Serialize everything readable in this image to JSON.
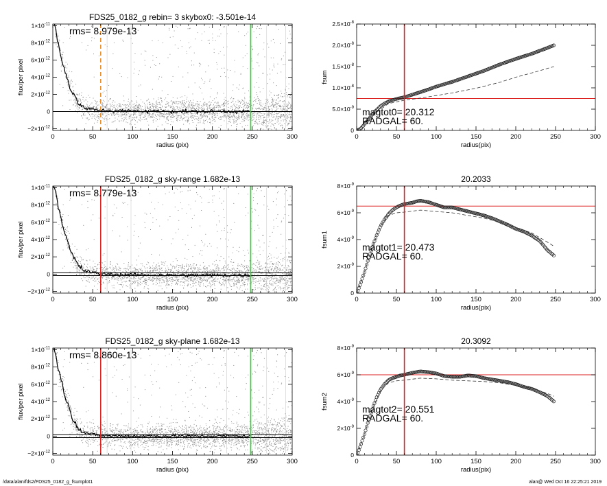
{
  "footer": {
    "path": "/data/alan/fds2/FDS25_0182_g_fsumplot1",
    "stamp": "alan@  Wed Oct 16 22:25:21 2019"
  },
  "chart_data": [
    {
      "id": "p1",
      "type": "scatter",
      "title": "FDS25_0182_g rebin= 3    skybox0: -3.501e-14",
      "xlabel": "radius (pix)",
      "ylabel": "flux/per pixel",
      "xlim": [
        0,
        300
      ],
      "ylim": [
        -2.2e-12,
        1.02e-11
      ],
      "xticks": [
        0,
        50,
        100,
        150,
        200,
        250,
        300
      ],
      "yticks": [
        {
          "v": 1e-11,
          "m": "1×10",
          "e": "-11"
        },
        {
          "v": 8e-12,
          "m": "8×10",
          "e": "-12"
        },
        {
          "v": 6e-12,
          "m": "6×10",
          "e": "-12"
        },
        {
          "v": 4e-12,
          "m": "4×10",
          "e": "-12"
        },
        {
          "v": 2e-12,
          "m": "2×10",
          "e": "-12"
        },
        {
          "v": 0,
          "m": "0",
          "e": ""
        },
        {
          "v": -2e-12,
          "m": "−2×10",
          "e": "-12"
        }
      ],
      "annotations": [
        "rms= 8.979e-13"
      ],
      "vlines": [
        {
          "x": 60,
          "color": "#e8902a",
          "style": "dashed"
        },
        {
          "x": 248,
          "color": "#22dd22",
          "style": "solid"
        }
      ],
      "hlines": [
        {
          "y": 0,
          "color": "#000000",
          "style": "solid"
        }
      ],
      "profile": {
        "x": [
          1,
          3,
          5,
          8,
          10,
          13,
          15,
          18,
          20,
          22,
          25,
          28,
          30,
          33,
          35,
          38,
          40,
          45,
          50,
          55,
          60,
          70,
          80,
          100,
          120,
          150,
          180,
          200,
          220,
          248
        ],
        "y": [
          1.05e-11,
          9.8e-12,
          8.8e-12,
          7.4e-12,
          6.6e-12,
          5.6e-12,
          4.8e-12,
          3.9e-12,
          3.3e-12,
          2.7e-12,
          2.1e-12,
          1.6e-12,
          1.3e-12,
          9e-13,
          7e-13,
          5e-13,
          4e-13,
          3e-13,
          2.5e-13,
          1.8e-13,
          1.5e-13,
          1e-13,
          8e-14,
          6e-14,
          4e-14,
          3e-14,
          2e-14,
          2e-14,
          1e-14,
          0
        ]
      }
    },
    {
      "id": "p2",
      "type": "scatter",
      "title": "",
      "xlabel": "radius(pix)",
      "ylabel": "fsum",
      "xlim": [
        0,
        300
      ],
      "ylim": [
        0,
        2.5e-08
      ],
      "xticks": [
        0,
        50,
        100,
        150,
        200,
        250,
        300
      ],
      "yticks": [
        {
          "v": 2.5e-08,
          "m": "2.5×10",
          "e": "-8"
        },
        {
          "v": 2e-08,
          "m": "2.0×10",
          "e": "-8"
        },
        {
          "v": 1.5e-08,
          "m": "1.5×10",
          "e": "-8"
        },
        {
          "v": 1e-08,
          "m": "1.0×10",
          "e": "-8"
        },
        {
          "v": 5e-09,
          "m": "5.0×10",
          "e": "-9"
        },
        {
          "v": 0,
          "m": "0",
          "e": ""
        }
      ],
      "annotations": [
        "magtot0=  20.312",
        "RADGAL=      60."
      ],
      "vlines": [
        {
          "x": 60,
          "color": "#dd2222",
          "style": "solid"
        }
      ],
      "hlines": [
        {
          "y": 7.5e-09,
          "color": "#dd2222",
          "style": "solid"
        }
      ],
      "series": [
        {
          "style": "circles",
          "x": [
            0,
            2,
            5,
            8,
            10,
            15,
            20,
            25,
            30,
            35,
            40,
            45,
            50,
            55,
            60,
            70,
            80,
            90,
            100,
            120,
            140,
            160,
            180,
            200,
            220,
            240,
            248
          ],
          "y": [
            0,
            1e-10,
            4e-10,
            1e-09,
            1.5e-09,
            2.6e-09,
            3.8e-09,
            4.8e-09,
            5.7e-09,
            6.3e-09,
            6.8e-09,
            7.1e-09,
            7.4e-09,
            7.6e-09,
            7.8e-09,
            8.4e-09,
            9e-09,
            9.6e-09,
            1.03e-08,
            1.14e-08,
            1.27e-08,
            1.4e-08,
            1.55e-08,
            1.68e-08,
            1.8e-08,
            1.94e-08,
            2e-08
          ]
        },
        {
          "style": "dashed",
          "x": [
            0,
            20,
            40,
            60,
            80,
            100,
            120,
            150,
            180,
            200,
            220,
            248
          ],
          "y": [
            0,
            3.6e-09,
            6.3e-09,
            7.1e-09,
            7.6e-09,
            8.2e-09,
            8.8e-09,
            9.9e-09,
            1.13e-08,
            1.25e-08,
            1.35e-08,
            1.5e-08
          ]
        }
      ]
    },
    {
      "id": "p3",
      "type": "scatter",
      "title": "FDS25_0182_g sky-range  1.682e-13",
      "xlabel": "radius (pix)",
      "ylabel": "flux/per pixel",
      "xlim": [
        0,
        300
      ],
      "ylim": [
        -2.2e-12,
        1.02e-11
      ],
      "xticks": [
        0,
        50,
        100,
        150,
        200,
        250,
        300
      ],
      "yticks": [
        {
          "v": 1e-11,
          "m": "1×10",
          "e": "-11"
        },
        {
          "v": 8e-12,
          "m": "8×10",
          "e": "-12"
        },
        {
          "v": 6e-12,
          "m": "6×10",
          "e": "-12"
        },
        {
          "v": 4e-12,
          "m": "4×10",
          "e": "-12"
        },
        {
          "v": 2e-12,
          "m": "2×10",
          "e": "-12"
        },
        {
          "v": 0,
          "m": "0",
          "e": ""
        },
        {
          "v": -2e-12,
          "m": "−2×10",
          "e": "-12"
        }
      ],
      "annotations": [
        "rms= 8.779e-13"
      ],
      "vlines": [
        {
          "x": 60,
          "color": "#dd2222",
          "style": "solid"
        },
        {
          "x": 248,
          "color": "#22dd22",
          "style": "solid"
        }
      ],
      "hlines": [
        {
          "y": 1.682e-13,
          "color": "#000000",
          "style": "solid"
        },
        {
          "y": -1.682e-13,
          "color": "#000000",
          "style": "solid"
        }
      ],
      "profile": {
        "x": [
          1,
          3,
          5,
          8,
          10,
          13,
          15,
          18,
          20,
          22,
          25,
          28,
          30,
          33,
          35,
          38,
          40,
          45,
          50,
          55,
          60,
          70,
          80,
          100,
          120,
          150,
          180,
          200,
          220,
          248
        ],
        "y": [
          1.05e-11,
          9.8e-12,
          8.8e-12,
          7.4e-12,
          6.6e-12,
          5.6e-12,
          4.8e-12,
          3.9e-12,
          3.3e-12,
          2.7e-12,
          2.1e-12,
          1.6e-12,
          1.3e-12,
          9e-13,
          7e-13,
          5e-13,
          4e-13,
          3e-13,
          2e-13,
          1e-13,
          5e-14,
          0,
          -5e-14,
          -8e-14,
          -1e-13,
          -1.2e-13,
          -1.3e-13,
          -1.2e-13,
          -1.3e-13,
          -1.4e-13
        ]
      }
    },
    {
      "id": "p4",
      "type": "scatter",
      "title": "20.2033",
      "xlabel": "radius(pix)",
      "ylabel": "fsum1",
      "xlim": [
        0,
        300
      ],
      "ylim": [
        0,
        8e-09
      ],
      "xticks": [
        0,
        50,
        100,
        150,
        200,
        250,
        300
      ],
      "yticks": [
        {
          "v": 8e-09,
          "m": "8×10",
          "e": "-9"
        },
        {
          "v": 6e-09,
          "m": "6×10",
          "e": "-9"
        },
        {
          "v": 4e-09,
          "m": "4×10",
          "e": "-9"
        },
        {
          "v": 2e-09,
          "m": "2×10",
          "e": "-9"
        },
        {
          "v": 0,
          "m": "0",
          "e": ""
        }
      ],
      "annotations": [
        "magtot1=  20.473",
        "RADGAL=      60."
      ],
      "vlines": [
        {
          "x": 60,
          "color": "#dd2222",
          "style": "solid"
        }
      ],
      "hlines": [
        {
          "y": 6.5e-09,
          "color": "#dd2222",
          "style": "solid"
        }
      ],
      "series": [
        {
          "style": "circles",
          "x": [
            0,
            3,
            6,
            10,
            15,
            20,
            25,
            30,
            35,
            40,
            45,
            50,
            55,
            60,
            65,
            70,
            75,
            80,
            85,
            90,
            95,
            100,
            110,
            120,
            130,
            140,
            150,
            160,
            170,
            180,
            190,
            200,
            210,
            220,
            230,
            240,
            248
          ],
          "y": [
            0,
            4e-10,
            9e-10,
            1.6e-09,
            2.6e-09,
            3.5e-09,
            4.3e-09,
            5e-09,
            5.5e-09,
            5.9e-09,
            6.2e-09,
            6.4e-09,
            6.55e-09,
            6.65e-09,
            6.7e-09,
            6.75e-09,
            6.85e-09,
            6.9e-09,
            6.85e-09,
            6.8e-09,
            6.7e-09,
            6.6e-09,
            6.4e-09,
            6.4e-09,
            6.25e-09,
            6.1e-09,
            5.95e-09,
            5.8e-09,
            5.6e-09,
            5.35e-09,
            5.1e-09,
            4.8e-09,
            4.6e-09,
            4.3e-09,
            3.9e-09,
            3.2e-09,
            2.8e-09
          ]
        },
        {
          "style": "dashed",
          "x": [
            0,
            10,
            20,
            30,
            40,
            50,
            60,
            80,
            100,
            120,
            140,
            160,
            180,
            200,
            220,
            240,
            248
          ],
          "y": [
            0,
            1.6e-09,
            3.5e-09,
            5e-09,
            5.8e-09,
            6e-09,
            6.05e-09,
            6.2e-09,
            6.1e-09,
            6e-09,
            5.8e-09,
            5.6e-09,
            5.3e-09,
            4.9e-09,
            4.5e-09,
            3.8e-09,
            3.5e-09
          ]
        }
      ]
    },
    {
      "id": "p5",
      "type": "scatter",
      "title": "FDS25_0182_g sky-plane  1.682e-13",
      "xlabel": "radius (pix)",
      "ylabel": "flux/per pixel",
      "xlim": [
        0,
        300
      ],
      "ylim": [
        -2.2e-12,
        1.02e-11
      ],
      "xticks": [
        0,
        50,
        100,
        150,
        200,
        250,
        300
      ],
      "yticks": [
        {
          "v": 1e-11,
          "m": "1×10",
          "e": "-11"
        },
        {
          "v": 8e-12,
          "m": "8×10",
          "e": "-12"
        },
        {
          "v": 6e-12,
          "m": "6×10",
          "e": "-12"
        },
        {
          "v": 4e-12,
          "m": "4×10",
          "e": "-12"
        },
        {
          "v": 2e-12,
          "m": "2×10",
          "e": "-12"
        },
        {
          "v": 0,
          "m": "0",
          "e": ""
        },
        {
          "v": -2e-12,
          "m": "−2×10",
          "e": "-12"
        }
      ],
      "annotations": [
        "rms= 8.860e-13"
      ],
      "vlines": [
        {
          "x": 60,
          "color": "#dd2222",
          "style": "solid"
        },
        {
          "x": 248,
          "color": "#22dd22",
          "style": "solid"
        }
      ],
      "hlines": [
        {
          "y": 1.682e-13,
          "color": "#000000",
          "style": "solid"
        },
        {
          "y": -1.682e-13,
          "color": "#000000",
          "style": "solid"
        }
      ],
      "profile": {
        "x": [
          1,
          3,
          5,
          8,
          10,
          13,
          15,
          18,
          20,
          22,
          25,
          28,
          30,
          33,
          35,
          38,
          40,
          45,
          50,
          55,
          60,
          70,
          80,
          100,
          120,
          150,
          180,
          200,
          220,
          248
        ],
        "y": [
          1.05e-11,
          9.8e-12,
          8.8e-12,
          7.4e-12,
          6.6e-12,
          5.6e-12,
          4.8e-12,
          3.9e-12,
          3.3e-12,
          2.7e-12,
          2.1e-12,
          1.6e-12,
          1.3e-12,
          9e-13,
          7e-13,
          5e-13,
          4e-13,
          3e-13,
          2e-13,
          1.2e-13,
          8e-14,
          4e-14,
          2e-14,
          1e-14,
          1e-14,
          0,
          0,
          1e-14,
          0,
          0
        ]
      }
    },
    {
      "id": "p6",
      "type": "scatter",
      "title": "20.3092",
      "xlabel": "radius(pix)",
      "ylabel": "fsum2",
      "xlim": [
        0,
        300
      ],
      "ylim": [
        0,
        8e-09
      ],
      "xticks": [
        0,
        50,
        100,
        150,
        200,
        250,
        300
      ],
      "yticks": [
        {
          "v": 8e-09,
          "m": "8×10",
          "e": "-9"
        },
        {
          "v": 6e-09,
          "m": "6×10",
          "e": "-9"
        },
        {
          "v": 4e-09,
          "m": "4×10",
          "e": "-9"
        },
        {
          "v": 2e-09,
          "m": "2×10",
          "e": "-9"
        },
        {
          "v": 0,
          "m": "0",
          "e": ""
        }
      ],
      "annotations": [
        "magtot2=  20.551",
        "RADGAL=      60."
      ],
      "vlines": [
        {
          "x": 60,
          "color": "#dd2222",
          "style": "solid"
        }
      ],
      "hlines": [
        {
          "y": 6e-09,
          "color": "#dd2222",
          "style": "solid"
        }
      ],
      "series": [
        {
          "style": "circles",
          "x": [
            0,
            3,
            6,
            10,
            15,
            20,
            25,
            30,
            35,
            40,
            45,
            50,
            55,
            60,
            70,
            80,
            90,
            100,
            110,
            120,
            130,
            140,
            150,
            160,
            170,
            180,
            190,
            200,
            210,
            220,
            230,
            240,
            248
          ],
          "y": [
            0,
            4e-10,
            9e-10,
            1.6e-09,
            2.6e-09,
            3.5e-09,
            4.3e-09,
            4.9e-09,
            5.3e-09,
            5.6e-09,
            5.75e-09,
            5.85e-09,
            5.95e-09,
            6e-09,
            6.15e-09,
            6.25e-09,
            6.2e-09,
            6.1e-09,
            5.9e-09,
            5.85e-09,
            5.85e-09,
            5.95e-09,
            5.9e-09,
            5.75e-09,
            5.65e-09,
            5.55e-09,
            5.45e-09,
            5.3e-09,
            5.1e-09,
            4.95e-09,
            4.7e-09,
            4.4e-09,
            4e-09
          ]
        },
        {
          "style": "dashed",
          "x": [
            0,
            10,
            20,
            30,
            40,
            50,
            60,
            80,
            100,
            120,
            140,
            160,
            180,
            200,
            220,
            240,
            248
          ],
          "y": [
            0,
            1.6e-09,
            3.5e-09,
            4.8e-09,
            5.4e-09,
            5.55e-09,
            5.6e-09,
            5.75e-09,
            5.7e-09,
            5.6e-09,
            5.55e-09,
            5.5e-09,
            5.4e-09,
            5.2e-09,
            5e-09,
            4.6e-09,
            4.4e-09
          ]
        }
      ]
    }
  ]
}
